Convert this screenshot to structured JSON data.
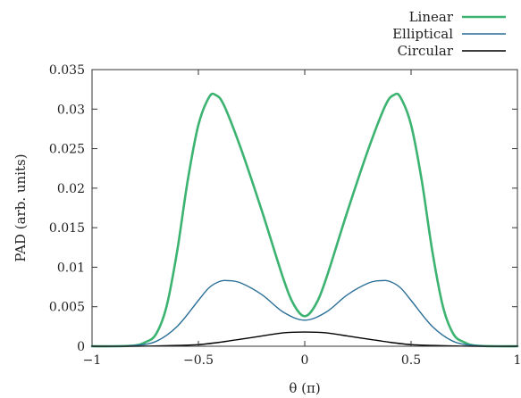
{
  "chart_data": {
    "type": "line",
    "xlabel": "θ (π)",
    "ylabel": "PAD (arb. units)",
    "xlim": [
      -1,
      1
    ],
    "ylim": [
      0,
      0.035
    ],
    "xticks": [
      -1,
      -0.5,
      0,
      0.5,
      1
    ],
    "xtick_labels": [
      "−1",
      "−0.5",
      "0",
      "0.5",
      "1"
    ],
    "yticks": [
      0,
      0.005,
      0.01,
      0.015,
      0.02,
      0.025,
      0.03,
      0.035
    ],
    "ytick_labels": [
      "0",
      "0.005",
      "0.01",
      "0.015",
      "0.02",
      "0.025",
      "0.03",
      "0.035"
    ],
    "grid": false,
    "legend_position": "top-right",
    "series": [
      {
        "name": "Linear",
        "color": "#3cb371",
        "x": [
          -1,
          -0.9,
          -0.8,
          -0.75,
          -0.7,
          -0.65,
          -0.6,
          -0.55,
          -0.5,
          -0.45,
          -0.42,
          -0.38,
          -0.3,
          -0.2,
          -0.1,
          -0.05,
          0,
          0.05,
          0.1,
          0.2,
          0.3,
          0.38,
          0.42,
          0.45,
          0.5,
          0.55,
          0.6,
          0.65,
          0.7,
          0.75,
          0.8,
          0.9,
          1
        ],
        "y": [
          0.0,
          0.0,
          0.0001,
          0.0005,
          0.0015,
          0.005,
          0.012,
          0.021,
          0.028,
          0.0315,
          0.0318,
          0.0305,
          0.025,
          0.017,
          0.0085,
          0.0052,
          0.0038,
          0.0052,
          0.0085,
          0.017,
          0.025,
          0.0305,
          0.0318,
          0.0315,
          0.028,
          0.021,
          0.012,
          0.005,
          0.0015,
          0.0005,
          0.0001,
          0.0,
          0.0
        ]
      },
      {
        "name": "Elliptical",
        "color": "#2a6f97",
        "x": [
          -1,
          -0.9,
          -0.8,
          -0.7,
          -0.6,
          -0.5,
          -0.45,
          -0.4,
          -0.36,
          -0.3,
          -0.2,
          -0.1,
          0,
          0.1,
          0.2,
          0.3,
          0.36,
          0.4,
          0.45,
          0.5,
          0.6,
          0.7,
          0.8,
          0.9,
          1
        ],
        "y": [
          0.0,
          0.0,
          0.0001,
          0.0006,
          0.0025,
          0.0058,
          0.0074,
          0.0082,
          0.0083,
          0.008,
          0.0065,
          0.0043,
          0.0033,
          0.0043,
          0.0065,
          0.008,
          0.0083,
          0.0082,
          0.0074,
          0.0058,
          0.0025,
          0.0006,
          0.0001,
          0.0,
          0.0
        ]
      },
      {
        "name": "Circular",
        "color": "#000000",
        "x": [
          -1,
          -0.8,
          -0.6,
          -0.5,
          -0.4,
          -0.3,
          -0.2,
          -0.1,
          0,
          0.1,
          0.2,
          0.3,
          0.4,
          0.5,
          0.6,
          0.8,
          1
        ],
        "y": [
          0.0,
          0.0,
          0.0001,
          0.0002,
          0.0005,
          0.0009,
          0.0013,
          0.0017,
          0.0018,
          0.0017,
          0.0013,
          0.0009,
          0.0005,
          0.0002,
          0.0001,
          0.0,
          0.0
        ]
      }
    ]
  }
}
